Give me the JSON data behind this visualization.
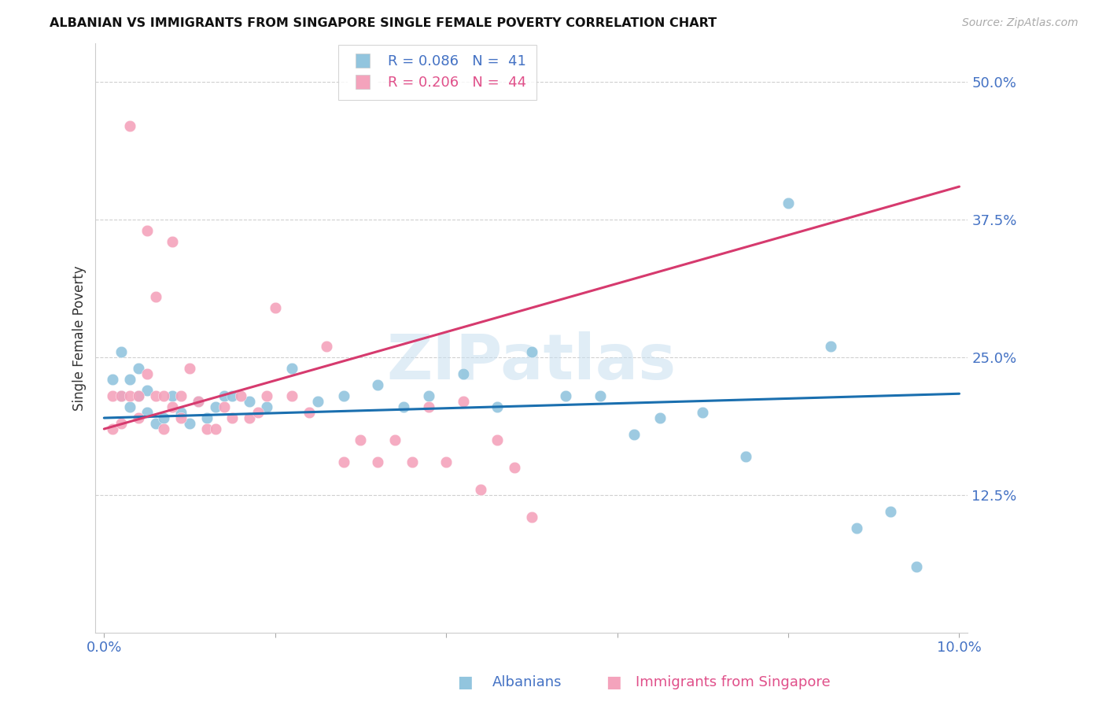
{
  "title": "ALBANIAN VS IMMIGRANTS FROM SINGAPORE SINGLE FEMALE POVERTY CORRELATION CHART",
  "source": "Source: ZipAtlas.com",
  "ylabel": "Single Female Poverty",
  "ytick_labels": [
    "12.5%",
    "25.0%",
    "37.5%",
    "50.0%"
  ],
  "ytick_values": [
    0.125,
    0.25,
    0.375,
    0.5
  ],
  "xlim": [
    0.0,
    0.1
  ],
  "ylim": [
    0.0,
    0.535
  ],
  "color_blue": "#92c5de",
  "color_pink": "#f4a3bc",
  "color_blue_line": "#1a6faf",
  "color_pink_line": "#d63a6e",
  "watermark_color": "#c8dff0",
  "albanians_x": [
    0.001,
    0.002,
    0.002,
    0.003,
    0.003,
    0.004,
    0.004,
    0.005,
    0.005,
    0.006,
    0.007,
    0.008,
    0.009,
    0.01,
    0.011,
    0.012,
    0.013,
    0.014,
    0.015,
    0.017,
    0.019,
    0.022,
    0.025,
    0.028,
    0.032,
    0.035,
    0.038,
    0.042,
    0.046,
    0.05,
    0.054,
    0.058,
    0.062,
    0.065,
    0.07,
    0.075,
    0.08,
    0.085,
    0.088,
    0.092,
    0.095
  ],
  "albanians_y": [
    0.23,
    0.215,
    0.255,
    0.205,
    0.23,
    0.215,
    0.24,
    0.2,
    0.22,
    0.19,
    0.195,
    0.215,
    0.2,
    0.19,
    0.21,
    0.195,
    0.205,
    0.215,
    0.215,
    0.21,
    0.205,
    0.24,
    0.21,
    0.215,
    0.225,
    0.205,
    0.215,
    0.235,
    0.205,
    0.255,
    0.215,
    0.215,
    0.18,
    0.195,
    0.2,
    0.16,
    0.39,
    0.26,
    0.095,
    0.11,
    0.06
  ],
  "singapore_x": [
    0.001,
    0.001,
    0.002,
    0.002,
    0.003,
    0.003,
    0.004,
    0.004,
    0.005,
    0.005,
    0.006,
    0.006,
    0.007,
    0.007,
    0.008,
    0.008,
    0.009,
    0.009,
    0.01,
    0.011,
    0.012,
    0.013,
    0.014,
    0.015,
    0.016,
    0.017,
    0.018,
    0.019,
    0.02,
    0.022,
    0.024,
    0.026,
    0.028,
    0.03,
    0.032,
    0.034,
    0.036,
    0.038,
    0.04,
    0.042,
    0.044,
    0.046,
    0.048,
    0.05
  ],
  "singapore_y": [
    0.215,
    0.185,
    0.215,
    0.19,
    0.215,
    0.46,
    0.195,
    0.215,
    0.235,
    0.365,
    0.215,
    0.305,
    0.215,
    0.185,
    0.355,
    0.205,
    0.195,
    0.215,
    0.24,
    0.21,
    0.185,
    0.185,
    0.205,
    0.195,
    0.215,
    0.195,
    0.2,
    0.215,
    0.295,
    0.215,
    0.2,
    0.26,
    0.155,
    0.175,
    0.155,
    0.175,
    0.155,
    0.205,
    0.155,
    0.21,
    0.13,
    0.175,
    0.15,
    0.105
  ]
}
